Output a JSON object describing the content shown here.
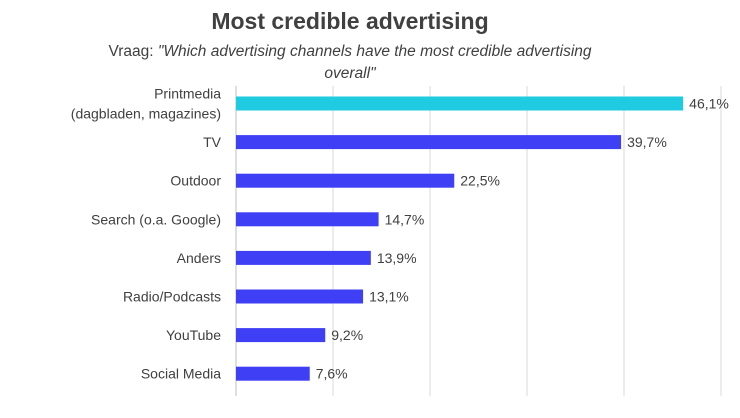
{
  "title": "Most credible advertising",
  "subtitle": {
    "prefix": "Vraag: ",
    "question": "\"Which advertising channels have the most credible advertising overall\""
  },
  "colors": {
    "highlight": "#1ECBE1",
    "bar": "#3F3FF5",
    "grid": "#D9D9D9"
  },
  "chart_data": {
    "type": "bar",
    "orientation": "horizontal",
    "title": "Most credible advertising",
    "subtitle": "Vraag: \"Which advertising channels have the most credible advertising overall\"",
    "categories": [
      [
        "Printmedia",
        "(dagbladen, magazines)"
      ],
      [
        "TV"
      ],
      [
        "Outdoor"
      ],
      [
        "Search (o.a. Google)"
      ],
      [
        "Anders"
      ],
      [
        "Radio/Podcasts"
      ],
      [
        "YouTube"
      ],
      [
        "Social Media"
      ]
    ],
    "values": [
      46.1,
      39.7,
      22.5,
      14.7,
      13.9,
      13.1,
      9.2,
      7.6
    ],
    "value_labels": [
      "46,1%",
      "39,7%",
      "22,5%",
      "14,7%",
      "13,9%",
      "13,1%",
      "9,2%",
      "7,6%"
    ],
    "highlight_index": 0,
    "xlim": [
      0,
      50
    ],
    "grid": true,
    "legend": "none"
  }
}
